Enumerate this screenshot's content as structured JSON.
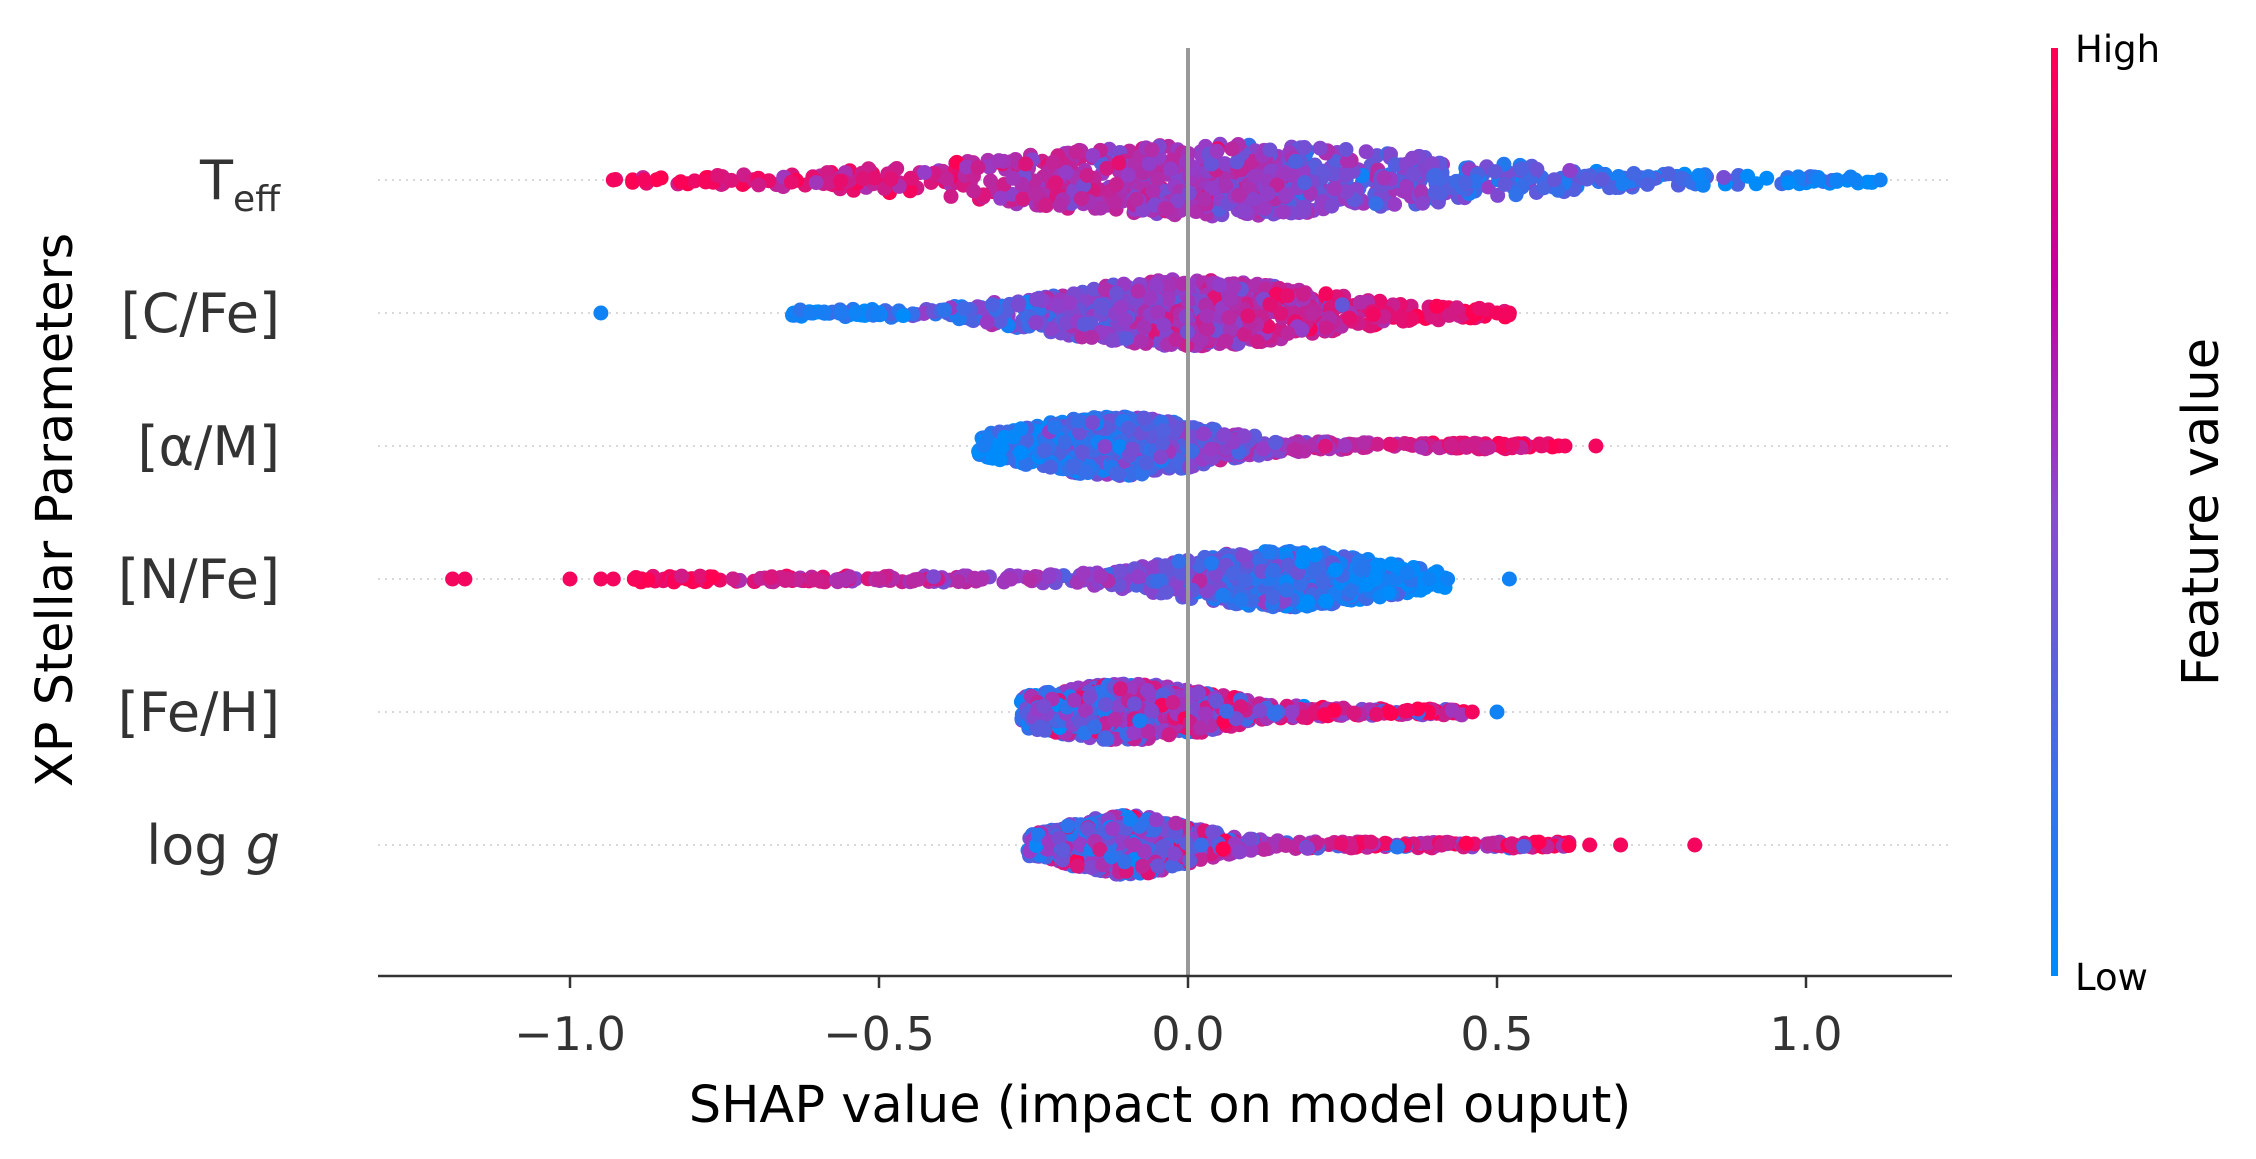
{
  "chart_data": {
    "type": "scatter",
    "subtype": "beeswarm",
    "xlabel": "SHAP value (impact on model ouput)",
    "ylabel": "XP Stellar Parameters",
    "xlim": [
      -1.31,
      1.24
    ],
    "xticks": [
      {
        "value": -1.0,
        "label": "−1.0"
      },
      {
        "value": -0.5,
        "label": "−0.5"
      },
      {
        "value": 0.0,
        "label": "0.0"
      },
      {
        "value": 0.5,
        "label": "0.5"
      },
      {
        "value": 1.0,
        "label": "1.0"
      }
    ],
    "zero_line": true,
    "grid": "dotted horizontal guide per feature",
    "colorbar": {
      "title": "Feature value",
      "high_label": "High",
      "low_label": "Low",
      "high_color": "#ff0052",
      "low_color": "#008bfb"
    },
    "features": [
      {
        "label_main": "T",
        "label_sub": "eff",
        "min": -0.93,
        "max": 1.12,
        "peak": 0.05,
        "spread": 0.34,
        "width": 0.5,
        "color_trend": "high_left",
        "outliers": [
          {
            "x": -0.93,
            "c": 0.95
          },
          {
            "x": -0.88,
            "c": 0.95
          },
          {
            "x": 1.02,
            "c": 0.05
          },
          {
            "x": 1.05,
            "c": 0.05
          },
          {
            "x": 1.08,
            "c": 0.05
          },
          {
            "x": 1.12,
            "c": 0.05
          }
        ]
      },
      {
        "label_main": "[C/Fe]",
        "label_sub": "",
        "min": -0.64,
        "max": 0.52,
        "peak": 0.0,
        "spread": 0.2,
        "width": 0.46,
        "color_trend": "high_right",
        "outliers": [
          {
            "x": -0.95,
            "c": 0.05
          },
          {
            "x": 0.5,
            "c": 0.95
          },
          {
            "x": 0.52,
            "c": 0.95
          }
        ]
      },
      {
        "label_main": "[α/M]",
        "label_sub": "",
        "min": -0.34,
        "max": 0.6,
        "peak": -0.12,
        "spread": 0.14,
        "width": 0.4,
        "color_trend": "high_right",
        "outliers": [
          {
            "x": 0.61,
            "c": 0.95
          },
          {
            "x": 0.66,
            "c": 0.95
          }
        ]
      },
      {
        "label_main": "[N/Fe]",
        "label_sub": "",
        "min": -0.9,
        "max": 0.42,
        "peak": 0.15,
        "spread": 0.16,
        "width": 0.38,
        "color_trend": "high_left",
        "outliers": [
          {
            "x": -1.19,
            "c": 0.95
          },
          {
            "x": -1.17,
            "c": 0.95
          },
          {
            "x": -1.0,
            "c": 0.95
          },
          {
            "x": -0.95,
            "c": 0.95
          },
          {
            "x": -0.93,
            "c": 0.95
          },
          {
            "x": 0.39,
            "c": 0.05
          },
          {
            "x": 0.42,
            "c": 0.05
          },
          {
            "x": 0.52,
            "c": 0.05
          }
        ]
      },
      {
        "label_main": "[Fe/H]",
        "label_sub": "",
        "min": -0.27,
        "max": 0.45,
        "peak": -0.1,
        "spread": 0.14,
        "width": 0.38,
        "color_trend": "mixed_right",
        "outliers": [
          {
            "x": 0.46,
            "c": 0.95
          },
          {
            "x": 0.5,
            "c": 0.05
          }
        ]
      },
      {
        "label_main": "log ",
        "label_sub": "g",
        "min": -0.26,
        "max": 0.62,
        "peak": -0.1,
        "spread": 0.1,
        "width": 0.4,
        "color_trend": "mixed_right",
        "outliers": [
          {
            "x": 0.65,
            "c": 0.95
          },
          {
            "x": 0.7,
            "c": 0.95
          },
          {
            "x": 0.82,
            "c": 0.95
          }
        ]
      }
    ]
  }
}
